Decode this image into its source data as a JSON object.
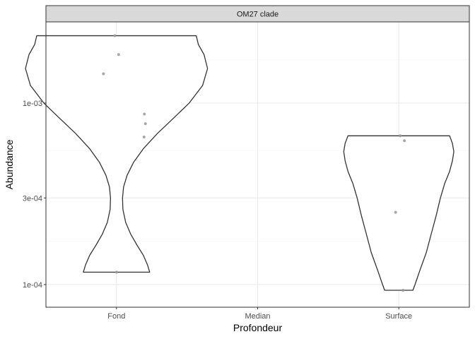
{
  "chart_data": {
    "type": "violin",
    "facet_label": "OM27 clade",
    "xlabel": "Profondeur",
    "ylabel": "Abundance",
    "categories": [
      "Fond",
      "Median",
      "Surface"
    ],
    "y_scale": "log10",
    "yticks": [
      {
        "value": 0.0001,
        "label": "1e-04"
      },
      {
        "value": 0.0003,
        "label": "3e-04"
      },
      {
        "value": 0.001,
        "label": "1e-03"
      }
    ],
    "ylim": [
      7.5e-05,
      0.0028
    ],
    "grid": true,
    "colors": {
      "violin_outline": "#333333",
      "points": "#999999",
      "strip_fill": "#d9d9d9",
      "grid_major": "#ebebeb",
      "grid_minor": "#f5f5f5",
      "panel_border": "#333333"
    },
    "groups": [
      {
        "category": "Fond",
        "points": [
          {
            "jitter": -0.05,
            "y": 0.00235
          },
          {
            "jitter": 0.06,
            "y": 0.00185
          },
          {
            "jitter": -0.37,
            "y": 0.00145
          },
          {
            "jitter": 0.79,
            "y": 0.00087
          },
          {
            "jitter": 0.82,
            "y": 0.00077
          },
          {
            "jitter": 0.78,
            "y": 0.00065
          },
          {
            "jitter": 0.0,
            "y": 0.000117
          }
        ],
        "violin_profile": [
          [
            0.000117,
            0.47
          ],
          [
            0.000128,
            0.44
          ],
          [
            0.000145,
            0.38
          ],
          [
            0.000165,
            0.29
          ],
          [
            0.00019,
            0.2
          ],
          [
            0.00022,
            0.13
          ],
          [
            0.00026,
            0.09
          ],
          [
            0.0003,
            0.085
          ],
          [
            0.000345,
            0.1
          ],
          [
            0.0004,
            0.15
          ],
          [
            0.00047,
            0.24
          ],
          [
            0.00056,
            0.38
          ],
          [
            0.00068,
            0.58
          ],
          [
            0.00082,
            0.8
          ],
          [
            0.001,
            1.03
          ],
          [
            0.00125,
            1.22
          ],
          [
            0.00155,
            1.29
          ],
          [
            0.00185,
            1.24
          ],
          [
            0.0021,
            1.16
          ],
          [
            0.00235,
            1.13
          ]
        ]
      },
      {
        "category": "Median",
        "points": [],
        "violin_profile": []
      },
      {
        "category": "Surface",
        "points": [
          {
            "jitter": 0.04,
            "y": 0.00066
          },
          {
            "jitter": 0.16,
            "y": 0.00062
          },
          {
            "jitter": -0.09,
            "y": 0.00025
          },
          {
            "jitter": 0.12,
            "y": 9.3e-05
          }
        ],
        "violin_profile": [
          [
            9.3e-05,
            0.2
          ],
          [
            0.0001,
            0.23
          ],
          [
            0.00012,
            0.3
          ],
          [
            0.00015,
            0.39
          ],
          [
            0.00019,
            0.46
          ],
          [
            0.00024,
            0.53
          ],
          [
            0.0003,
            0.59
          ],
          [
            0.00036,
            0.65
          ],
          [
            0.00042,
            0.72
          ],
          [
            0.00048,
            0.76
          ],
          [
            0.00054,
            0.78
          ],
          [
            0.0006,
            0.76
          ],
          [
            0.00066,
            0.72
          ]
        ]
      }
    ]
  }
}
